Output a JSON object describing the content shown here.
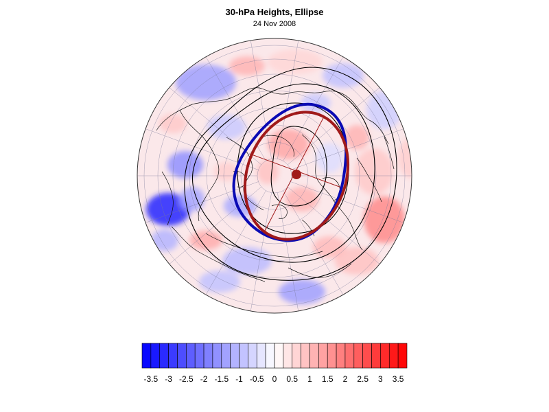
{
  "title": "30-hPa Heights, Ellipse",
  "subtitle": "24 Nov 2008",
  "colors": {
    "ellipse_blue": "#0a0ab4",
    "ellipse_red": "#a01a1a",
    "contour": "#000000",
    "coast": "#111111"
  },
  "colorbar": {
    "min": -3.75,
    "max": 3.75,
    "step": 0.25,
    "tick_labels": [
      "-3.5",
      "-3",
      "-2.5",
      "-2",
      "-1.5",
      "-1",
      "-0.5",
      "0",
      "0.5",
      "1",
      "1.5",
      "2",
      "2.5",
      "3",
      "3.5"
    ]
  },
  "chart_data": {
    "type": "heatmap",
    "title": "30-hPa Heights, Ellipse",
    "subtitle": "24 Nov 2008",
    "projection": "orthographic, north pole",
    "colorbar_range": [
      -3.75,
      3.75
    ],
    "colorbar_interval": 0.25,
    "tick_values": [
      -3.5,
      -3,
      -2.5,
      -2,
      -1.5,
      -1,
      -0.5,
      0,
      0.5,
      1,
      1.5,
      2,
      2.5,
      3,
      3.5
    ]
  }
}
